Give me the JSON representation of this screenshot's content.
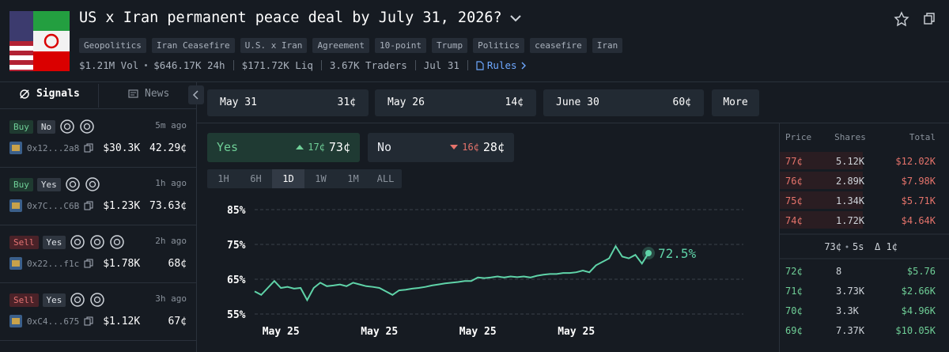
{
  "header": {
    "title": "US x Iran permanent peace deal by July 31, 2026?",
    "tags": [
      "Geopolitics",
      "Iran Ceasefire",
      "U.S. x Iran",
      "Agreement",
      "10-point",
      "Trump",
      "Politics",
      "ceasefire",
      "Iran"
    ],
    "stats": [
      "$1.21M Vol",
      "$646.17K 24h",
      "$171.72K Liq",
      "3.67K Traders",
      "Jul 31"
    ],
    "rules": "Rules"
  },
  "sidebar": {
    "tabs": [
      "Signals",
      "News"
    ],
    "signals": [
      {
        "side": "Buy",
        "outcome": "No",
        "time": "5m ago",
        "wallet": "0x12...2a8",
        "amount": "$30.3K",
        "price": "42.29¢"
      },
      {
        "side": "Buy",
        "outcome": "Yes",
        "time": "1h ago",
        "wallet": "0x7C...C6B",
        "amount": "$1.23K",
        "price": "73.63¢"
      },
      {
        "side": "Sell",
        "outcome": "Yes",
        "time": "2h ago",
        "wallet": "0x22...f1c",
        "amount": "$1.78K",
        "price": "68¢"
      },
      {
        "side": "Sell",
        "outcome": "Yes",
        "time": "3h ago",
        "wallet": "0xC4...675",
        "amount": "$1.12K",
        "price": "67¢"
      }
    ]
  },
  "markets": [
    {
      "label": "May 31",
      "price": "31¢"
    },
    {
      "label": "May 26",
      "price": "14¢"
    },
    {
      "label": "June 30",
      "price": "60¢"
    }
  ],
  "more": "More",
  "outcomes": [
    {
      "name": "Yes",
      "change": "17¢",
      "price": "73¢"
    },
    {
      "name": "No",
      "change": "16¢",
      "price": "28¢"
    }
  ],
  "ranges": [
    "1H",
    "6H",
    "1D",
    "1W",
    "1M",
    "ALL"
  ],
  "chart_data": {
    "type": "line",
    "color": "#5fd3a8",
    "categories": [
      null,
      null,
      null,
      null,
      "May 25",
      null,
      null,
      null,
      null,
      null,
      null,
      null,
      null,
      null,
      null,
      null,
      null,
      null,
      null,
      "May 25",
      null,
      null,
      null,
      null,
      null,
      null,
      null,
      null,
      null,
      null,
      null,
      null,
      null,
      null,
      "May 25",
      null,
      null,
      null,
      null,
      null,
      null,
      null,
      null,
      null,
      null,
      null,
      null,
      null,
      null,
      "May 25",
      null,
      null,
      null,
      null,
      null,
      null,
      null,
      null,
      null,
      null,
      null
    ],
    "values": [
      61.5,
      60.5,
      62.5,
      64.5,
      62.5,
      62.8,
      62.3,
      62.5,
      59,
      62.5,
      64,
      63,
      63.2,
      63.5,
      63,
      64,
      63.5,
      63,
      62.8,
      62.5,
      61.5,
      60.5,
      61.8,
      62,
      62.3,
      62.5,
      62.8,
      63.2,
      63.5,
      63.8,
      64,
      64.2,
      64.5,
      64.5,
      65.5,
      65.3,
      65.5,
      65.8,
      65.5,
      65.8,
      65.6,
      65.8,
      65.5,
      66,
      66.3,
      66.5,
      66.5,
      66.8,
      66.8,
      67,
      67.5,
      67,
      69,
      70,
      71,
      74.5,
      71.5,
      71,
      72,
      69.5,
      72.5
    ],
    "annotation": "72.5%",
    "ylim": [
      55,
      85
    ],
    "yticks": [
      {
        "value": 55,
        "label": "55%"
      },
      {
        "value": 65,
        "label": "65%"
      },
      {
        "value": 75,
        "label": "75%"
      },
      {
        "value": 85,
        "label": "85%"
      }
    ],
    "grid": true
  },
  "order_book": {
    "headers": [
      "Price",
      "Shares",
      "Total"
    ],
    "asks": [
      [
        "77¢",
        "5.12K",
        "$12.02K"
      ],
      [
        "76¢",
        "2.89K",
        "$7.98K"
      ],
      [
        "75¢",
        "1.34K",
        "$5.71K"
      ],
      [
        "74¢",
        "1.72K",
        "$4.64K"
      ]
    ],
    "spread": {
      "price": "73¢",
      "age": "5s",
      "delta": "Δ 1¢"
    },
    "bids": [
      [
        "72¢",
        "8",
        "$5.76"
      ],
      [
        "71¢",
        "3.73K",
        "$2.66K"
      ],
      [
        "70¢",
        "3.3K",
        "$4.96K"
      ],
      [
        "69¢",
        "7.37K",
        "$10.05K"
      ]
    ]
  }
}
